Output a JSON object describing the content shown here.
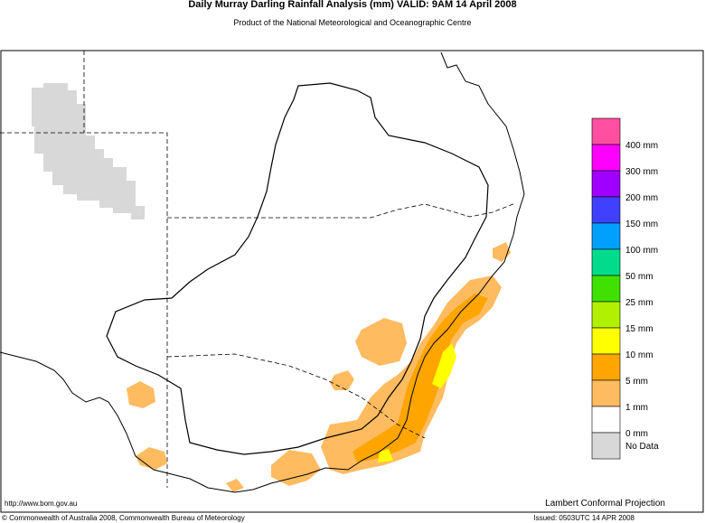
{
  "header": {
    "title": "Daily Murray Darling Rainfall Analysis (mm)  VALID: 9AM 14 April 2008",
    "subtitle": "Product of the National Meteorological and Oceanographic Centre"
  },
  "legend": {
    "colors": [
      "#ff4fa0",
      "#ff00ff",
      "#a000ff",
      "#4040ff",
      "#00a0ff",
      "#00dc8c",
      "#40e000",
      "#b0f000",
      "#ffff00",
      "#ffa500",
      "#ffbb60",
      "#ffffff",
      "#d8d8d8"
    ],
    "labels": [
      "400 mm",
      "300 mm",
      "200 mm",
      "150 mm",
      "100 mm",
      "50 mm",
      "25 mm",
      "15 mm",
      "10 mm",
      "5 mm",
      "1 mm",
      "0 mm"
    ],
    "no_data": "No Data"
  },
  "footer": {
    "url": "http://www.bom.gov.au",
    "projection": "Lambert Conformal Projection",
    "copyright": "© Commonwealth of Australia 2008, Commonwealth Bureau of Meteorology",
    "issued": "Issued: 0503UTC 14 APR 2008"
  }
}
